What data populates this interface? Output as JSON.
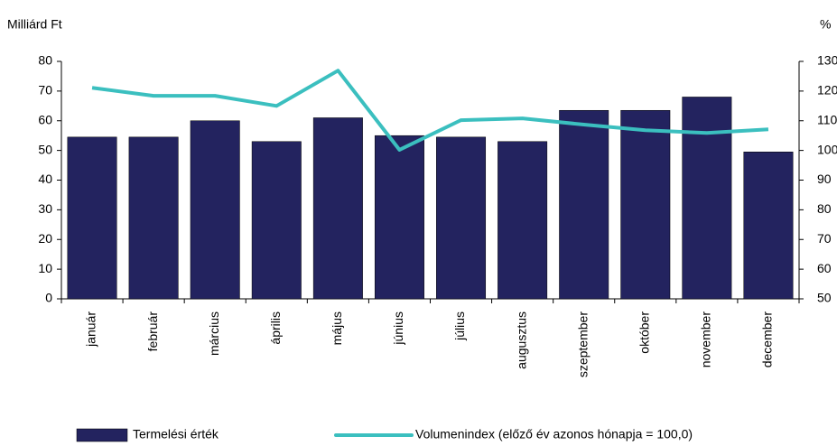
{
  "chart_data": {
    "type": "bar",
    "y_axis_label": "Milliárd Ft",
    "y2_axis_label": "%",
    "categories": [
      "január",
      "február",
      "március",
      "április",
      "május",
      "június",
      "július",
      "augusztus",
      "szeptember",
      "október",
      "november",
      "december"
    ],
    "series": [
      {
        "name": "Termelési érték",
        "type": "bar",
        "color": "#23235f",
        "values": [
          54.5,
          54.5,
          60,
          53,
          61,
          55,
          54.5,
          53,
          63.5,
          63.5,
          68,
          49.5
        ]
      },
      {
        "name": "Volumenindex (előző év azonos hónapja = 100,0)",
        "type": "line",
        "axis": "y2",
        "color": "#3bbfbf",
        "values": [
          121.1,
          118.4,
          118.4,
          115,
          126.9,
          100.2,
          110.2,
          110.8,
          108.7,
          106.8,
          105.9,
          107.1
        ]
      }
    ],
    "ylim": [
      0,
      80
    ],
    "yticks": [
      0,
      10,
      20,
      30,
      40,
      50,
      60,
      70,
      80
    ],
    "y2lim": [
      50,
      130
    ],
    "y2ticks": [
      50,
      60,
      70,
      80,
      90,
      100,
      110,
      120,
      130
    ],
    "grid": false,
    "legend": "bottom"
  }
}
